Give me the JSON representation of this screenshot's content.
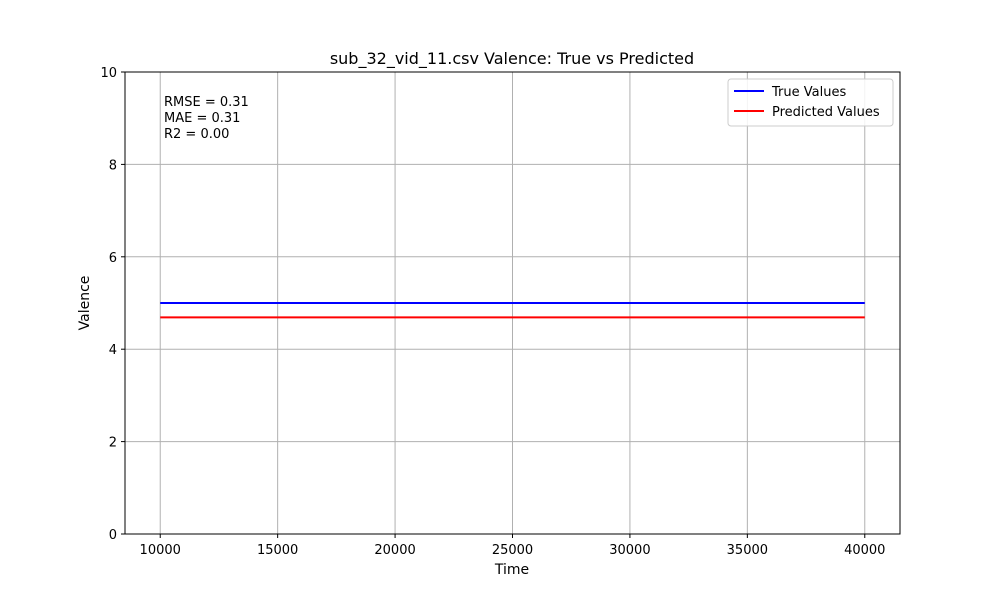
{
  "chart_data": {
    "type": "line",
    "title": "sub_32_vid_11.csv Valence: True vs Predicted",
    "xlabel": "Time",
    "ylabel": "Valence",
    "xlim": [
      8500,
      41500
    ],
    "ylim": [
      0,
      10
    ],
    "x_ticks": [
      10000,
      15000,
      20000,
      25000,
      30000,
      35000,
      40000
    ],
    "y_ticks": [
      0,
      2,
      4,
      6,
      8,
      10
    ],
    "grid": true,
    "legend_position": "top-right",
    "series": [
      {
        "name": "True Values",
        "color": "#0000ff",
        "x": [
          10000,
          40000
        ],
        "y": [
          5.0,
          5.0
        ]
      },
      {
        "name": "Predicted Values",
        "color": "#ff0000",
        "x": [
          10000,
          40000
        ],
        "y": [
          4.69,
          4.69
        ]
      }
    ],
    "annotations": [
      "RMSE = 0.31",
      "MAE = 0.31",
      "R2 = 0.00"
    ]
  }
}
